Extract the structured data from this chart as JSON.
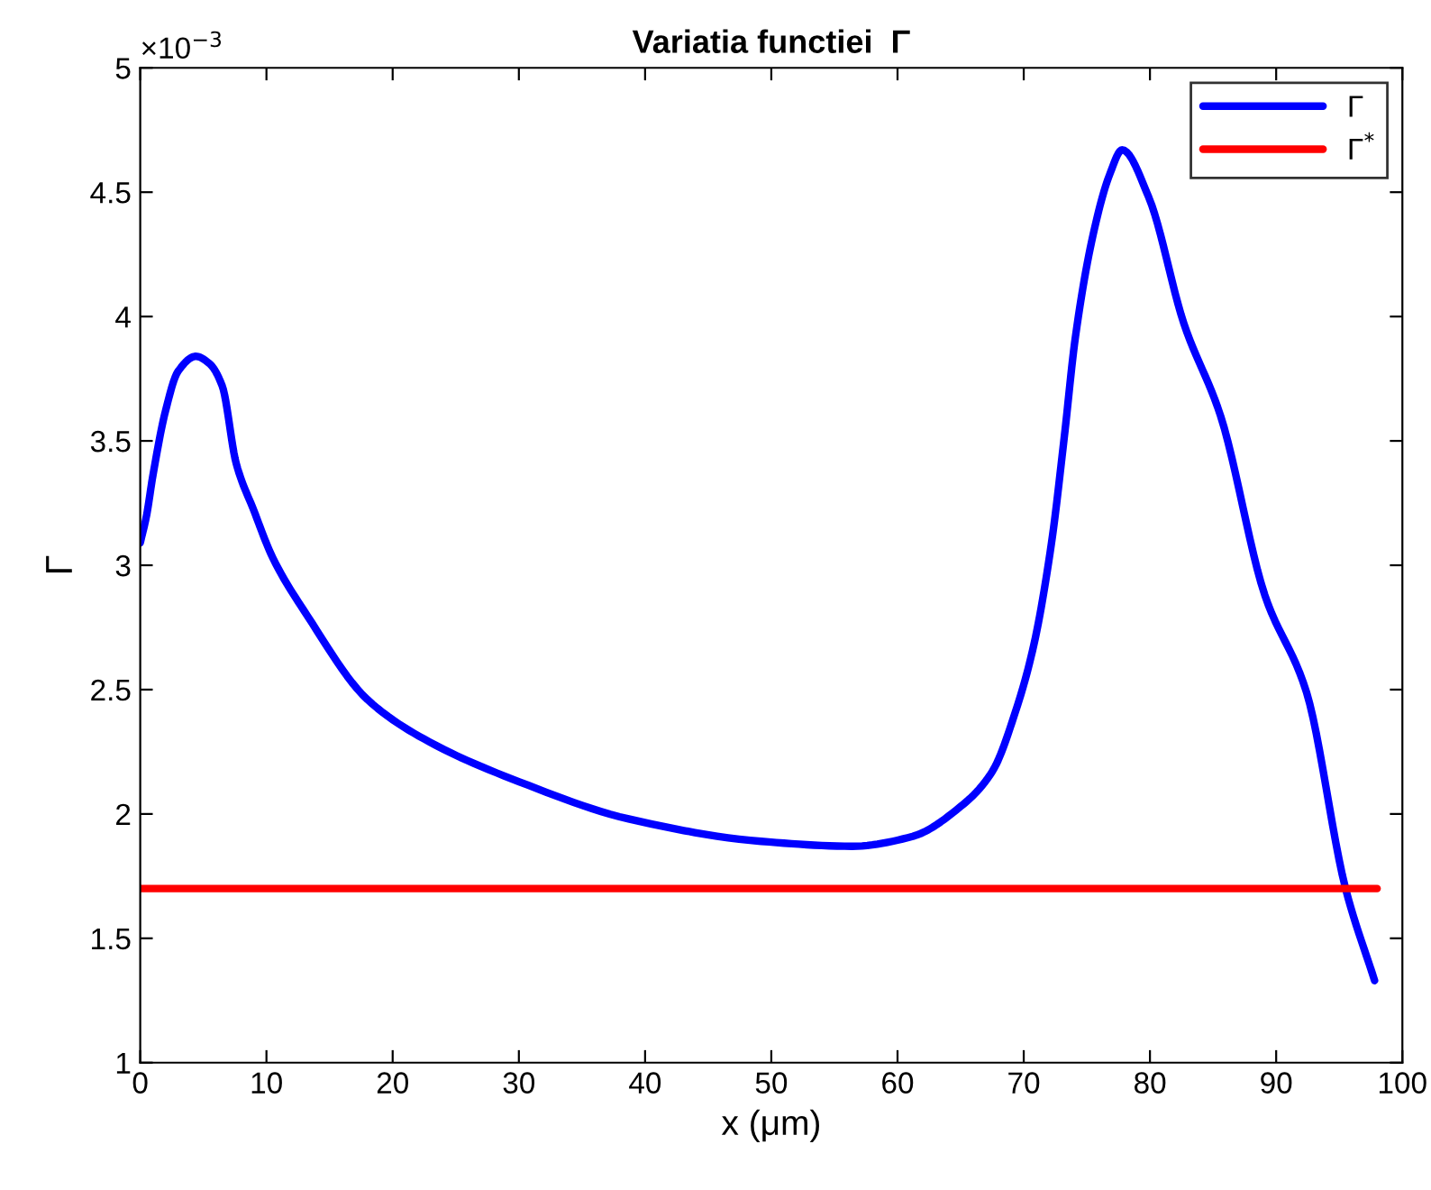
{
  "chart_data": {
    "type": "line",
    "title": "Variatia functiei  Γ",
    "xlabel": "x (μm)",
    "ylabel": "Γ",
    "annotations": [
      "×10$^{−3}$"
    ],
    "xlim": [
      0,
      100
    ],
    "xticks": [
      0,
      10,
      20,
      30,
      40,
      50,
      60,
      70,
      80,
      90,
      100
    ],
    "ylim": [
      1,
      5
    ],
    "yticks": [
      1,
      1.5,
      2,
      2.5,
      3,
      3.5,
      4,
      4.5,
      5
    ],
    "grid": false,
    "legend": "top right",
    "marker": "none",
    "line_style": "solid",
    "series": [
      {
        "name": "Γ",
        "color": "#0000ff",
        "x": [
          0,
          0.5,
          1,
          2,
          3,
          4.4,
          5.5,
          6.5,
          7.6,
          9,
          10.5,
          13.2,
          18,
          22.9,
          30,
          38.7,
          49.2,
          56.4,
          61.2,
          65,
          67.5,
          69.4,
          70.8,
          72.2,
          73.2,
          74.1,
          75.5,
          76.8,
          77.8,
          79.9,
          82.7,
          85.6,
          89.1,
          92.4,
          95.5,
          97.8
        ],
        "values": [
          3.09,
          3.2,
          3.36,
          3.62,
          3.78,
          3.84,
          3.81,
          3.72,
          3.41,
          3.22,
          3.03,
          2.8,
          2.46,
          2.29,
          2.13,
          1.98,
          1.89,
          1.87,
          1.91,
          2.03,
          2.17,
          2.42,
          2.68,
          3.09,
          3.51,
          3.92,
          4.33,
          4.57,
          4.67,
          4.48,
          3.97,
          3.6,
          2.88,
          2.49,
          1.7,
          1.33
        ]
      },
      {
        "name": "Γ$^{*}$",
        "color": "#ff0000",
        "x": [
          0,
          98
        ],
        "values": [
          1.7,
          1.7
        ]
      }
    ]
  }
}
